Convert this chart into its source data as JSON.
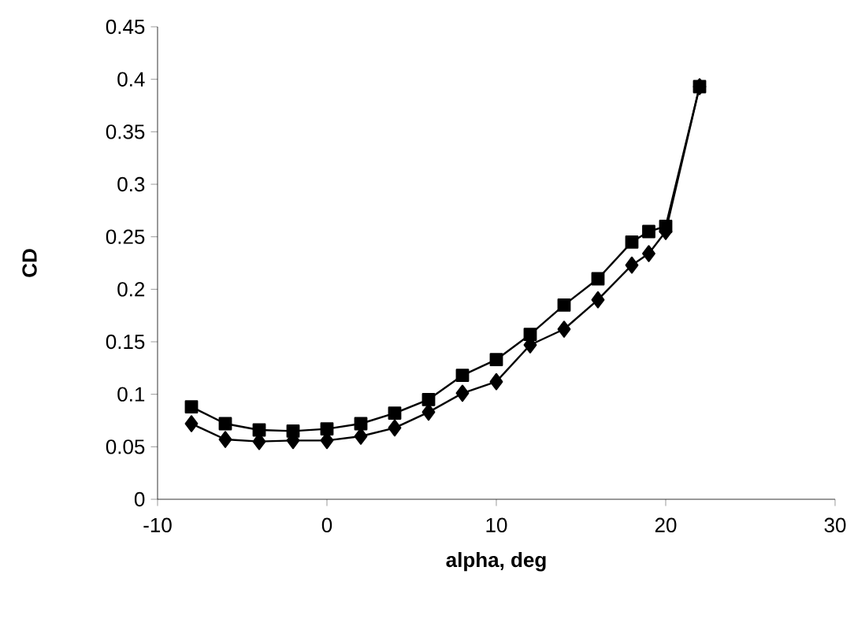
{
  "chart_data": {
    "type": "line",
    "xlabel": "alpha, deg",
    "ylabel": "CD",
    "x": [
      -8,
      -6,
      -4,
      -2,
      0,
      2,
      4,
      6,
      8,
      10,
      12,
      14,
      16,
      18,
      19,
      20,
      22
    ],
    "series": [
      {
        "color": "#000000",
        "marker": "square",
        "values": [
          0.088,
          0.072,
          0.066,
          0.065,
          0.067,
          0.072,
          0.082,
          0.095,
          0.118,
          0.133,
          0.157,
          0.185,
          0.21,
          0.245,
          0.255,
          0.26,
          0.393
        ]
      },
      {
        "color": "#000000",
        "marker": "diamond",
        "values": [
          0.072,
          0.057,
          0.055,
          0.056,
          0.056,
          0.06,
          0.068,
          0.083,
          0.101,
          0.112,
          0.147,
          0.162,
          0.19,
          0.223,
          0.234,
          0.255,
          0.393
        ]
      }
    ],
    "xlim": [
      -10,
      30
    ],
    "xticks": [
      -10,
      0,
      10,
      20,
      30
    ],
    "ylim": [
      0,
      0.45
    ],
    "yticks": [
      0,
      0.05,
      0.1,
      0.15,
      0.2,
      0.25,
      0.3,
      0.35,
      0.4,
      0.45
    ],
    "grid": false,
    "line_style": "solid"
  }
}
